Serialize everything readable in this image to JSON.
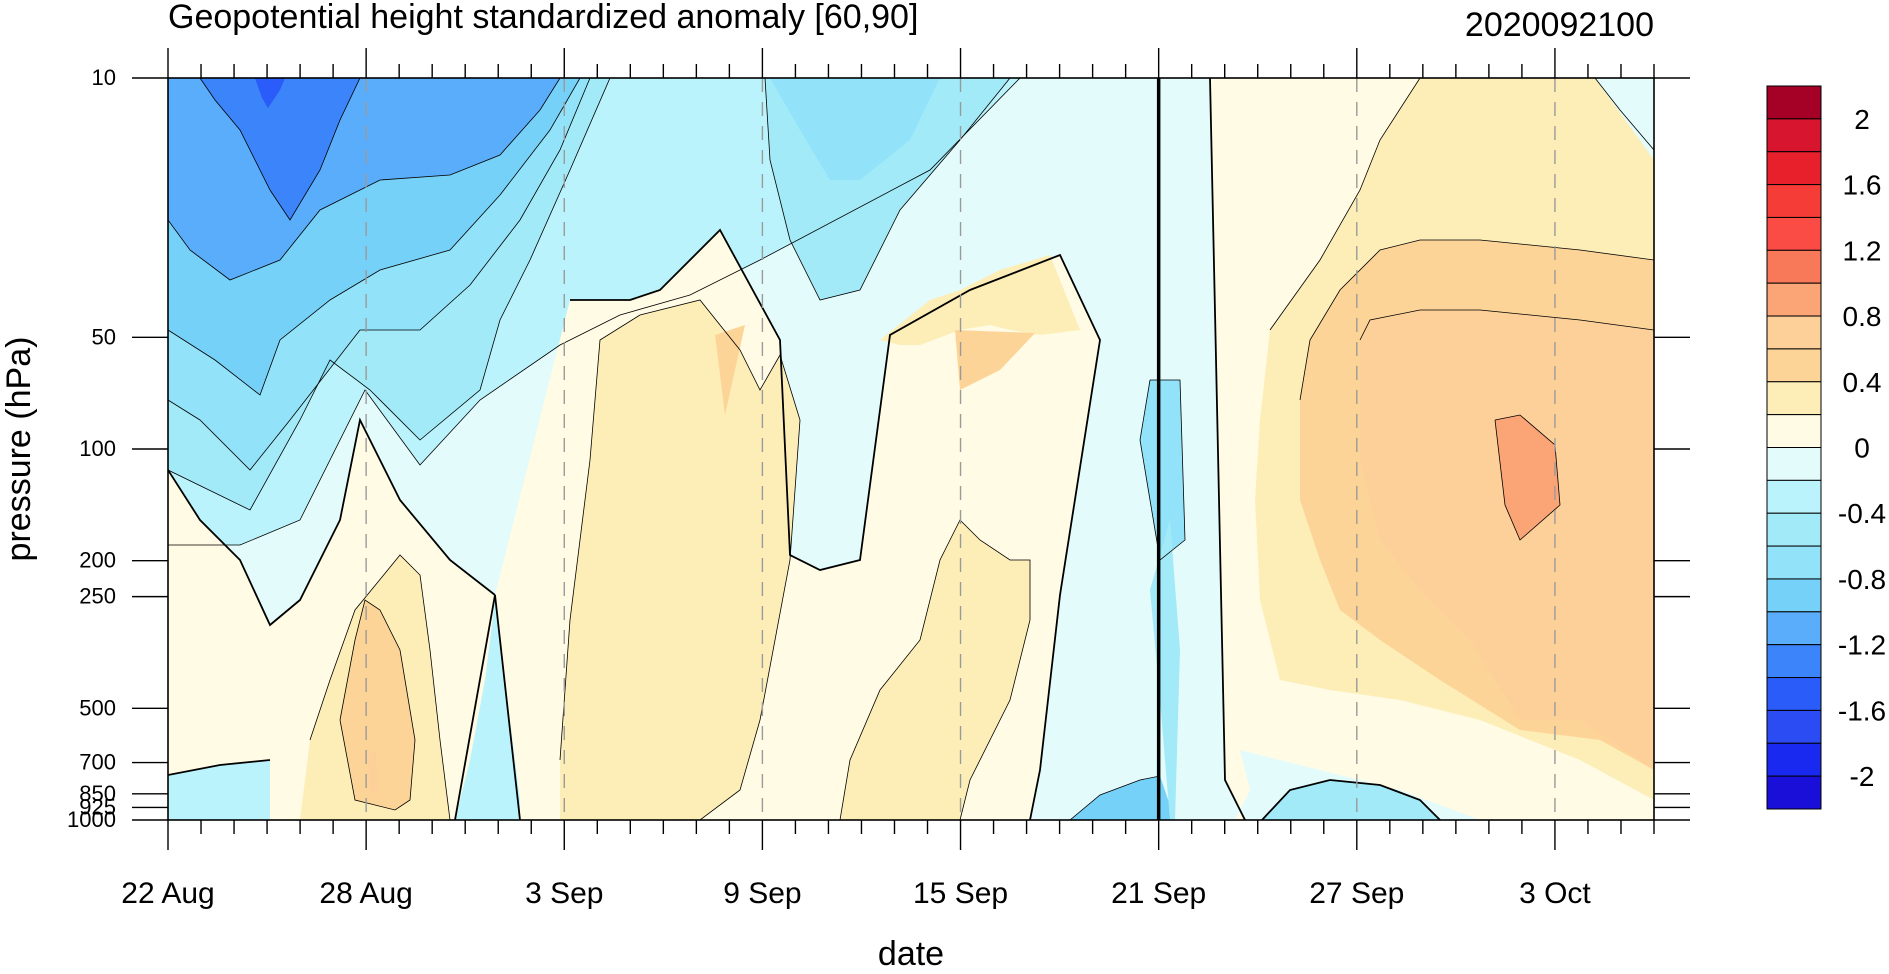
{
  "chart_data": {
    "type": "heatmap",
    "subtype": "filled-contour",
    "title": "Geopotential height standardized anomaly [60,90]",
    "title_right": "2020092100",
    "xlabel": "date",
    "ylabel": "pressure (hPa)",
    "x_ticks": [
      "22 Aug",
      "28 Aug",
      "3 Sep",
      "9 Sep",
      "15 Sep",
      "21 Sep",
      "27 Sep",
      "3 Oct"
    ],
    "x_range": [
      "22 Aug",
      "6 Oct"
    ],
    "marked_date": "21 Sep",
    "y_scale": "log",
    "y_reversed": true,
    "y_ticks": [
      "10",
      "50",
      "100",
      "200",
      "250",
      "500",
      "700",
      "850",
      "925",
      "1000"
    ],
    "y_range": [
      10,
      1000
    ],
    "grid": "dashed vertical lines at labeled dates",
    "colorbar": {
      "placement": "right",
      "labels": [
        "2",
        "1.6",
        "1.2",
        "0.8",
        "0.4",
        "0",
        "-0.4",
        "-0.8",
        "-1.2",
        "-1.6",
        "-2"
      ],
      "levels": [
        -2.2,
        -2.0,
        -1.8,
        -1.6,
        -1.4,
        -1.2,
        -1.0,
        -0.8,
        -0.6,
        -0.4,
        -0.2,
        0.0,
        0.2,
        0.4,
        0.6,
        0.8,
        1.0,
        1.2,
        1.4,
        1.6,
        1.8,
        2.0
      ],
      "colors_top_to_bottom": [
        "#a50026",
        "#d7152e",
        "#e8202c",
        "#f63c36",
        "#fb4b45",
        "#f7795a",
        "#fba476",
        "#fdd09a",
        "#fdd497",
        "#fdeeb8",
        "#fffbe4",
        "#e4fbfb",
        "#baf3fb",
        "#a2eaf7",
        "#92e3f9",
        "#76d1f8",
        "#5aadfa",
        "#3b84f9",
        "#2a5cf9",
        "#2b4cf3",
        "#1a29ef",
        "#1a0fd8"
      ]
    },
    "anomaly_field_samples": [
      {
        "date": "22 Aug",
        "p10": -1.0,
        "p50": -0.9,
        "p100": -0.6,
        "p200": 0.1,
        "p500": 0.1,
        "p1000": -0.2
      },
      {
        "date": "25 Aug",
        "p10": -1.6,
        "p50": -1.1,
        "p100": -0.9,
        "p200": -0.3,
        "p500": 0.0,
        "p1000": -0.1
      },
      {
        "date": "28 Aug",
        "p10": -1.2,
        "p50": -0.4,
        "p100": 0.0,
        "p200": 0.4,
        "p500": 0.7,
        "p1000": 0.3
      },
      {
        "date": "3 Sep",
        "p10": -0.3,
        "p50": -0.2,
        "p100": 0.0,
        "p200": 0.3,
        "p500": 0.4,
        "p1000": 0.2
      },
      {
        "date": "8 Sep",
        "p10": -0.2,
        "p50": 0.6,
        "p100": 0.4,
        "p200": 0.2,
        "p500": 0.1,
        "p1000": 0.0
      },
      {
        "date": "10 Sep",
        "p10": -0.5,
        "p50": -0.3,
        "p100": -0.1,
        "p200": 0.0,
        "p500": 0.1,
        "p1000": 0.1
      },
      {
        "date": "15 Sep",
        "p10": -0.1,
        "p50": 0.5,
        "p100": 0.3,
        "p200": 0.4,
        "p500": 0.2,
        "p1000": 0.0
      },
      {
        "date": "21 Sep",
        "p10": -0.1,
        "p50": -0.1,
        "p100": -0.3,
        "p200": -0.1,
        "p500": -0.2,
        "p1000": -0.5
      },
      {
        "date": "27 Sep",
        "p10": 0.3,
        "p50": 0.6,
        "p100": 0.5,
        "p200": 0.4,
        "p500": 0.3,
        "p1000": -0.3
      },
      {
        "date": "2 Oct",
        "p10": 0.2,
        "p50": 0.7,
        "p100": 0.9,
        "p200": 0.8,
        "p500": 0.6,
        "p1000": 0.3
      },
      {
        "date": "6 Oct",
        "p10": -0.1,
        "p50": 0.6,
        "p100": 0.6,
        "p200": 0.5,
        "p500": 0.5,
        "p1000": 0.2
      }
    ]
  }
}
